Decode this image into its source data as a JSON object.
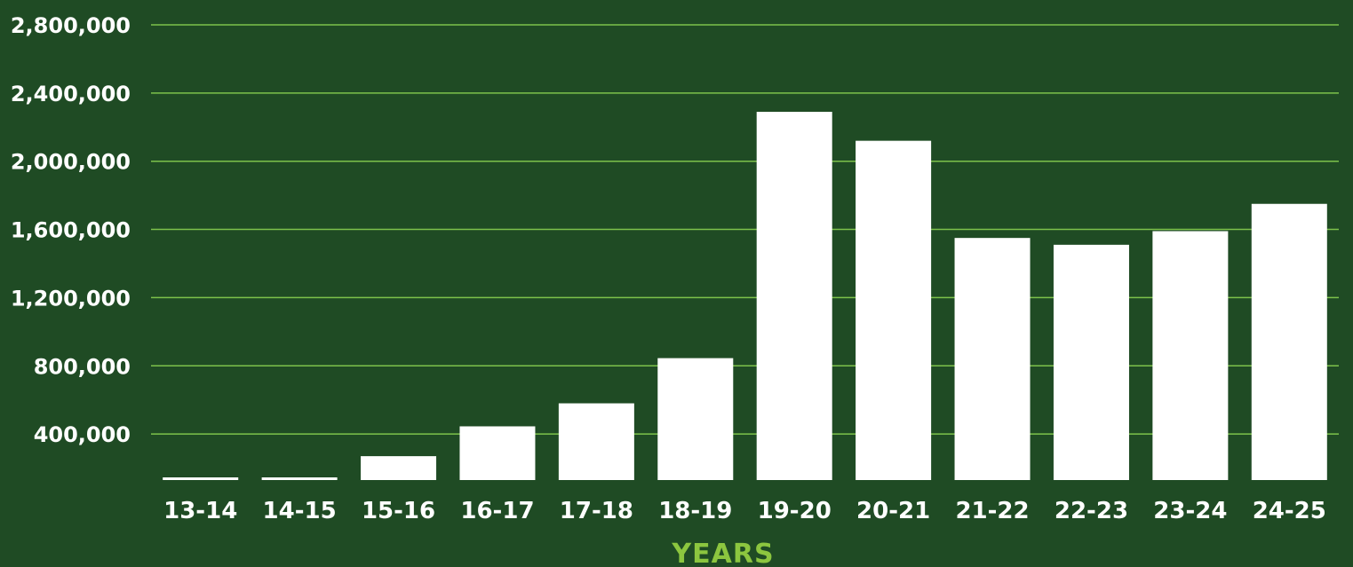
{
  "chart_data": {
    "type": "bar",
    "title": "",
    "xlabel": "YEARS",
    "ylabel": "",
    "categories": [
      "13-14",
      "14-15",
      "15-16",
      "16-17",
      "17-18",
      "18-19",
      "19-20",
      "20-21",
      "21-22",
      "22-23",
      "23-24",
      "24-25"
    ],
    "values": [
      12000,
      130000,
      270000,
      445000,
      580000,
      845000,
      2290000,
      2120000,
      1550000,
      1510000,
      1590000,
      1750000
    ],
    "yticks": [
      400000,
      800000,
      1200000,
      1600000,
      2000000,
      2400000,
      2800000
    ],
    "ytick_labels": [
      "400,000",
      "800,000",
      "1,200,000",
      "1,600,000",
      "2,000,000",
      "2,400,000",
      "2,800,000"
    ],
    "ylim": [
      130000,
      2800000
    ],
    "grid": "horizontal",
    "legend": "none"
  },
  "colors": {
    "background": "#1f4b24",
    "bar": "#ffffff",
    "grid": "#7dc24b",
    "tick_text": "#ffffff",
    "axis_label": "#8cc63f"
  }
}
